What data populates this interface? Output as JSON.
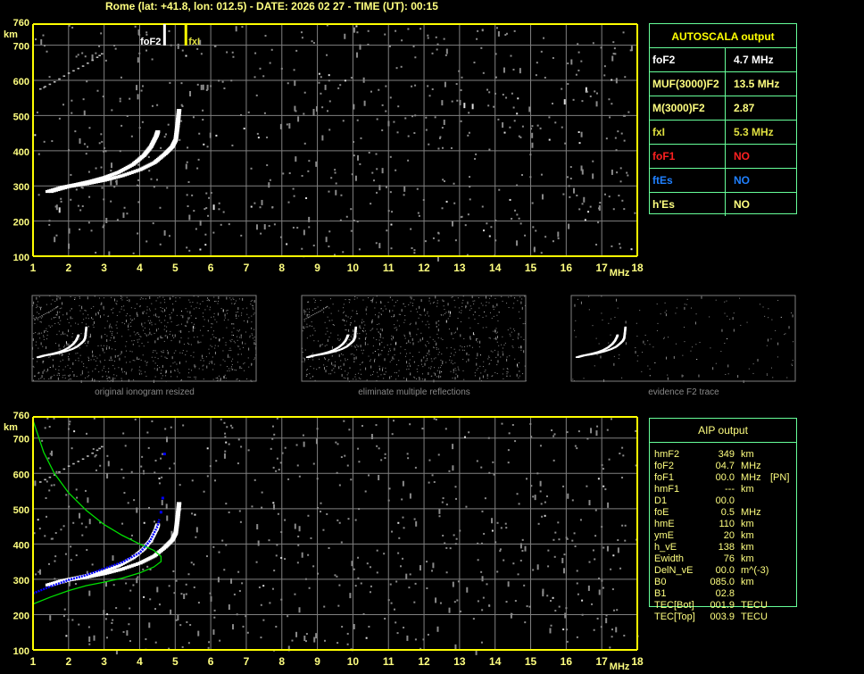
{
  "header": "Rome (lat: +41.8, lon: 012.5) - DATE: 2026 02 27 - TIME (UT): 00:15",
  "colors": {
    "axis": "#ffff00",
    "label": "#ffff80",
    "grid": "#808080",
    "noise": "#8a8a8a",
    "trace": "#ffffff",
    "fit_profile": "#00e000",
    "fit_trace": "#0000ff",
    "table_border": "#66ff99"
  },
  "markers": {
    "foF2_label": "foF2",
    "fxI_label": "fxI"
  },
  "autoscala": {
    "title": "AUTOSCALA output",
    "rows": [
      {
        "key": "foF2",
        "value": "4.7 MHz",
        "color": "#ffffff"
      },
      {
        "key": "MUF(3000)F2",
        "value": "13.5 MHz",
        "color": "#ffff80"
      },
      {
        "key": "M(3000)F2",
        "value": "2.87",
        "color": "#ffff80"
      },
      {
        "key": "fxI",
        "value": "5.3 MHz",
        "color": "#e0e040"
      },
      {
        "key": "foF1",
        "value": "NO",
        "color": "#ff2020"
      },
      {
        "key": "ftEs",
        "value": "NO",
        "color": "#2080ff"
      },
      {
        "key": "h'Es",
        "value": "NO",
        "color": "#ffff80"
      }
    ]
  },
  "aip": {
    "title": "AIP output",
    "rows": [
      {
        "key": "hmF2",
        "value": "349",
        "unit": "km",
        "extra": ""
      },
      {
        "key": "foF2",
        "value": "04.7",
        "unit": "MHz",
        "extra": ""
      },
      {
        "key": "foF1",
        "value": "00.0",
        "unit": "MHz",
        "extra": "[PN]"
      },
      {
        "key": "hmF1",
        "value": "---",
        "unit": "km",
        "extra": ""
      },
      {
        "key": "D1",
        "value": "00.0",
        "unit": "",
        "extra": ""
      },
      {
        "key": "foE",
        "value": "0.5",
        "unit": "MHz",
        "extra": ""
      },
      {
        "key": "hmE",
        "value": "110",
        "unit": "km",
        "extra": ""
      },
      {
        "key": "ymE",
        "value": "20",
        "unit": "km",
        "extra": ""
      },
      {
        "key": "h_vE",
        "value": "138",
        "unit": "km",
        "extra": ""
      },
      {
        "key": "Ewidth",
        "value": "76",
        "unit": "km",
        "extra": ""
      },
      {
        "key": "DelN_vE",
        "value": "00.0",
        "unit": "m^(-3)",
        "extra": ""
      },
      {
        "key": "B0",
        "value": "085.0",
        "unit": "km",
        "extra": ""
      },
      {
        "key": "B1",
        "value": "02.8",
        "unit": "",
        "extra": ""
      },
      {
        "key": "TEC[Bot]",
        "value": "001.9",
        "unit": "TECU",
        "extra": ""
      },
      {
        "key": "TEC[Top]",
        "value": "003.9",
        "unit": "TECU",
        "extra": ""
      }
    ]
  },
  "thumbnails": [
    {
      "caption": "original ionogram resized"
    },
    {
      "caption": "eliminate multiple reflections"
    },
    {
      "caption": "evidence F2 trace"
    }
  ],
  "chart_data": [
    {
      "type": "scatter",
      "title": "",
      "xlabel": "MHz",
      "ylabel": "km",
      "xlim": [
        1,
        18
      ],
      "ylim": [
        100,
        760
      ],
      "xticks": [
        1,
        2,
        3,
        4,
        5,
        6,
        7,
        8,
        9,
        10,
        11,
        12,
        13,
        14,
        15,
        16,
        17,
        18
      ],
      "yticks": [
        100,
        200,
        300,
        400,
        500,
        600,
        700,
        760
      ],
      "grid": true,
      "markers": {
        "foF2": 4.7,
        "fxI": 5.3
      },
      "series": [
        {
          "role": "o_trace",
          "points": [
            [
              1.4,
              283
            ],
            [
              1.8,
              295
            ],
            [
              2.2,
              303
            ],
            [
              2.6,
              312
            ],
            [
              3.0,
              323
            ],
            [
              3.4,
              338
            ],
            [
              3.8,
              360
            ],
            [
              4.1,
              385
            ],
            [
              4.3,
              410
            ],
            [
              4.45,
              440
            ],
            [
              4.5,
              455
            ]
          ]
        },
        {
          "role": "x_trace",
          "points": [
            [
              1.5,
              283
            ],
            [
              2.0,
              297
            ],
            [
              2.5,
              305
            ],
            [
              3.0,
              315
            ],
            [
              3.5,
              328
            ],
            [
              4.0,
              345
            ],
            [
              4.4,
              365
            ],
            [
              4.7,
              390
            ],
            [
              4.9,
              410
            ],
            [
              5.0,
              430
            ],
            [
              5.05,
              470
            ],
            [
              5.1,
              520
            ]
          ]
        },
        {
          "role": "second_hop",
          "points": [
            [
              1.2,
              575
            ],
            [
              1.6,
              595
            ],
            [
              2.0,
              620
            ],
            [
              2.4,
              640
            ],
            [
              2.8,
              665
            ],
            [
              3.0,
              680
            ]
          ]
        }
      ]
    },
    {
      "type": "line",
      "title": "",
      "xlabel": "MHz",
      "ylabel": "km",
      "xlim": [
        1,
        18
      ],
      "ylim": [
        100,
        760
      ],
      "xticks": [
        1,
        2,
        3,
        4,
        5,
        6,
        7,
        8,
        9,
        10,
        11,
        12,
        13,
        14,
        15,
        16,
        17,
        18
      ],
      "yticks": [
        100,
        200,
        300,
        400,
        500,
        600,
        700,
        760
      ],
      "grid": true,
      "series": [
        {
          "role": "o_trace",
          "points": [
            [
              1.4,
              283
            ],
            [
              1.8,
              295
            ],
            [
              2.2,
              303
            ],
            [
              2.6,
              312
            ],
            [
              3.0,
              323
            ],
            [
              3.4,
              338
            ],
            [
              3.8,
              360
            ],
            [
              4.1,
              385
            ],
            [
              4.3,
              410
            ],
            [
              4.45,
              440
            ],
            [
              4.5,
              455
            ]
          ]
        },
        {
          "role": "x_trace",
          "points": [
            [
              1.5,
              283
            ],
            [
              2.0,
              297
            ],
            [
              2.5,
              305
            ],
            [
              3.0,
              315
            ],
            [
              3.5,
              328
            ],
            [
              4.0,
              345
            ],
            [
              4.4,
              365
            ],
            [
              4.7,
              390
            ],
            [
              4.9,
              410
            ],
            [
              5.0,
              430
            ],
            [
              5.05,
              470
            ],
            [
              5.1,
              520
            ]
          ]
        },
        {
          "role": "second_hop",
          "points": [
            [
              1.2,
              575
            ],
            [
              1.6,
              595
            ],
            [
              2.0,
              620
            ],
            [
              2.4,
              640
            ],
            [
              2.8,
              665
            ],
            [
              3.0,
              680
            ]
          ]
        },
        {
          "role": "aip_profile",
          "color": "#00e000",
          "points": [
            [
              1,
              230
            ],
            [
              1.5,
              250
            ],
            [
              2,
              268
            ],
            [
              2.5,
              282
            ],
            [
              3,
              292
            ],
            [
              3.5,
              303
            ],
            [
              4,
              318
            ],
            [
              4.4,
              335
            ],
            [
              4.6,
              350
            ],
            [
              4.6,
              365
            ],
            [
              4.4,
              382
            ],
            [
              4,
              400
            ],
            [
              3.5,
              425
            ],
            [
              3,
              455
            ],
            [
              2.5,
              495
            ],
            [
              2,
              545
            ],
            [
              1.6,
              600
            ],
            [
              1.3,
              660
            ],
            [
              1.1,
              720
            ],
            [
              1,
              750
            ]
          ]
        },
        {
          "role": "aip_fit",
          "color": "#0000ff",
          "points": [
            [
              1,
              260
            ],
            [
              1.5,
              280
            ],
            [
              2,
              298
            ],
            [
              2.5,
              312
            ],
            [
              3,
              330
            ],
            [
              3.5,
              348
            ],
            [
              4,
              375
            ],
            [
              4.3,
              410
            ],
            [
              4.5,
              450
            ],
            [
              4.55,
              470
            ]
          ]
        },
        {
          "role": "aip_fit_points",
          "color": "#0000ff",
          "points": [
            [
              4.6,
              490
            ],
            [
              4.65,
              530
            ],
            [
              4.7,
              655
            ]
          ]
        }
      ]
    }
  ]
}
